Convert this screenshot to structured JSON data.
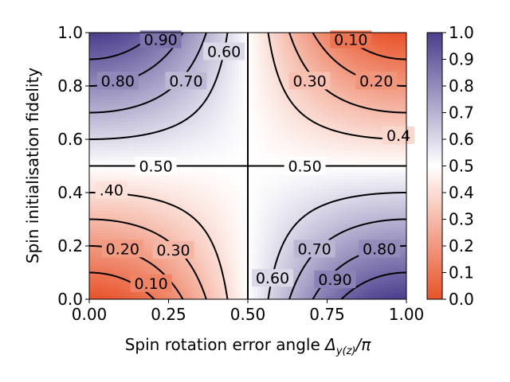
{
  "chart_data": {
    "type": "heatmap",
    "subtype": "filled-contour",
    "function": "F = 0.5 + (2*p - 1) * (0.5 - sin^2(pi*x/2)) where x = rotation error / pi, p = initialisation fidelity",
    "xlabel_main": "Spin rotation error angle ",
    "xlabel_symbol": "Δ",
    "xlabel_sub": "y(z)",
    "xlabel_tail": "/π",
    "ylabel": "Spin initialisation fidelity",
    "xlim": [
      0.0,
      1.0
    ],
    "ylim": [
      0.0,
      1.0
    ],
    "xticks": [
      "0.00",
      "0.25",
      "0.50",
      "0.75",
      "1.00"
    ],
    "xtick_values": [
      0.0,
      0.25,
      0.5,
      0.75,
      1.0
    ],
    "yticks": [
      "0.0",
      "0.2",
      "0.4",
      "0.6",
      "0.8",
      "1.0"
    ],
    "ytick_values": [
      0.0,
      0.2,
      0.4,
      0.6,
      0.8,
      1.0
    ],
    "colorbar": {
      "range": [
        0.0,
        1.0
      ],
      "ticks": [
        "0.0",
        "0.1",
        "0.2",
        "0.3",
        "0.4",
        "0.5",
        "0.6",
        "0.7",
        "0.8",
        "0.9",
        "1.0"
      ],
      "tick_values": [
        0.0,
        0.1,
        0.2,
        0.3,
        0.4,
        0.5,
        0.6,
        0.7,
        0.8,
        0.9,
        1.0
      ],
      "low_color": "#e8532a",
      "mid_color": "#ffffff",
      "high_color": "#4b3f8e"
    },
    "contour_levels": [
      0.1,
      0.2,
      0.3,
      0.4,
      0.5,
      0.6,
      0.7,
      0.8,
      0.9
    ],
    "contour_labels": [
      {
        "text": "0.50",
        "x": 0.21,
        "y": 0.5
      },
      {
        "text": "0.50",
        "x": 0.68,
        "y": 0.5
      },
      {
        "text": "0.60",
        "x": 0.425,
        "y": 0.93
      },
      {
        "text": "0.70",
        "x": 0.305,
        "y": 0.82
      },
      {
        "text": "0.80",
        "x": 0.09,
        "y": 0.82
      },
      {
        "text": "0.90",
        "x": 0.225,
        "y": 0.975
      },
      {
        "text": "0.10",
        "x": 0.825,
        "y": 0.975
      },
      {
        "text": "0.20",
        "x": 0.905,
        "y": 0.82
      },
      {
        "text": "0.30",
        "x": 0.695,
        "y": 0.82
      },
      {
        "text": "0.4",
        "x": 0.975,
        "y": 0.615
      },
      {
        "text": ".40",
        "x": 0.07,
        "y": 0.41
      },
      {
        "text": "0.20",
        "x": 0.105,
        "y": 0.19
      },
      {
        "text": "0.30",
        "x": 0.265,
        "y": 0.185
      },
      {
        "text": "0.10",
        "x": 0.195,
        "y": 0.06
      },
      {
        "text": "0.60",
        "x": 0.578,
        "y": 0.08
      },
      {
        "text": "0.70",
        "x": 0.71,
        "y": 0.19
      },
      {
        "text": "0.80",
        "x": 0.915,
        "y": 0.19
      },
      {
        "text": "0.90",
        "x": 0.775,
        "y": 0.075
      }
    ]
  }
}
